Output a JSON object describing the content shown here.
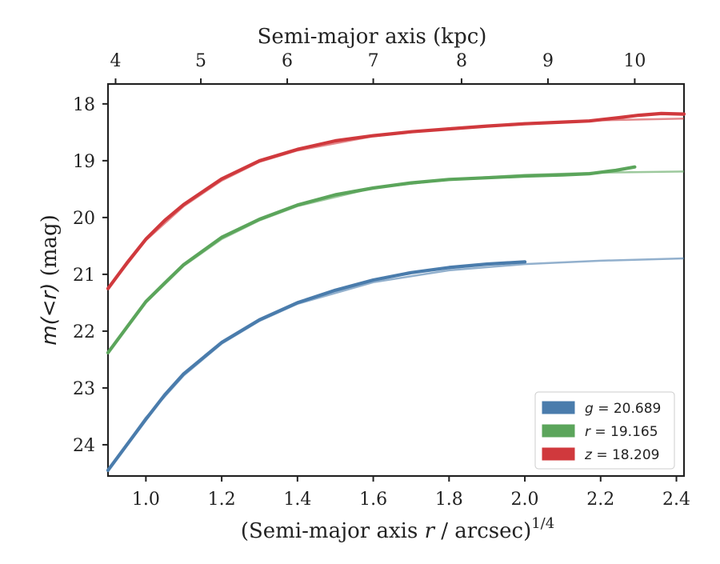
{
  "chart_data": {
    "type": "line",
    "title": "",
    "xlabel": "(Semi-major axis r / arcsec)^1/4",
    "xlabel_parts": {
      "prefix": "(Semi-major axis ",
      "var": "r",
      "suffix": " / arcsec)",
      "superscript": "1/4"
    },
    "ylabel": "m(<r) (mag)",
    "ylabel_parts": {
      "func": "m",
      "arg": "(<r)",
      "unit": " (mag)"
    },
    "top_xlabel": "Semi-major axis (kpc)",
    "xlim": [
      0.9,
      2.42
    ],
    "ylim": [
      24.55,
      17.65
    ],
    "y_inverted": true,
    "x_ticks": [
      "1.0",
      "1.2",
      "1.4",
      "1.6",
      "1.8",
      "2.0",
      "2.2",
      "2.4"
    ],
    "y_ticks": [
      "18",
      "19",
      "20",
      "21",
      "22",
      "23",
      "24"
    ],
    "top_ticks": [
      "4",
      "5",
      "6",
      "7",
      "8",
      "9",
      "10"
    ],
    "top_ticks_bottom_axis_position": [
      0.92,
      1.145,
      1.373,
      1.6,
      1.833,
      2.061,
      2.29
    ],
    "legend_position": "lower-right",
    "grid": false,
    "series": [
      {
        "name": "g = 20.689",
        "band": "g",
        "value_label": "20.689",
        "color": "#4a7cac",
        "data_x": [
          0.9,
          0.95,
          1.0,
          1.05,
          1.1,
          1.2,
          1.3,
          1.4,
          1.5,
          1.6,
          1.7,
          1.8,
          1.9,
          2.0
        ],
        "data_y": [
          24.45,
          24.0,
          23.55,
          23.12,
          22.75,
          22.2,
          21.8,
          21.5,
          21.28,
          21.1,
          20.97,
          20.88,
          20.82,
          20.78
        ],
        "model_x": [
          0.9,
          1.0,
          1.1,
          1.2,
          1.3,
          1.4,
          1.6,
          1.8,
          2.0,
          2.2,
          2.42
        ],
        "model_y": [
          24.45,
          23.52,
          22.78,
          22.22,
          21.82,
          21.52,
          21.14,
          20.93,
          20.82,
          20.76,
          20.72
        ]
      },
      {
        "name": "r = 19.165",
        "band": "r",
        "value_label": "19.165",
        "color": "#5ba55b",
        "data_x": [
          0.9,
          0.95,
          1.0,
          1.05,
          1.1,
          1.2,
          1.3,
          1.4,
          1.5,
          1.6,
          1.7,
          1.8,
          1.9,
          2.0,
          2.1,
          2.17,
          2.24,
          2.29
        ],
        "data_y": [
          22.38,
          21.93,
          21.48,
          21.15,
          20.83,
          20.35,
          20.03,
          19.78,
          19.6,
          19.48,
          19.39,
          19.33,
          19.3,
          19.27,
          19.25,
          19.23,
          19.17,
          19.11
        ],
        "model_x": [
          0.9,
          1.0,
          1.1,
          1.2,
          1.3,
          1.4,
          1.6,
          1.8,
          2.0,
          2.2,
          2.42
        ],
        "model_y": [
          22.38,
          21.5,
          20.85,
          20.38,
          20.05,
          19.8,
          19.48,
          19.33,
          19.25,
          19.21,
          19.19
        ]
      },
      {
        "name": "z = 18.209",
        "band": "z",
        "value_label": "18.209",
        "color": "#d0393d",
        "data_x": [
          0.9,
          0.95,
          1.0,
          1.05,
          1.1,
          1.2,
          1.3,
          1.4,
          1.5,
          1.6,
          1.7,
          1.8,
          1.9,
          2.0,
          2.1,
          2.17,
          2.25,
          2.3,
          2.36,
          2.42
        ],
        "data_y": [
          21.25,
          20.8,
          20.38,
          20.05,
          19.77,
          19.32,
          19.0,
          18.8,
          18.65,
          18.56,
          18.49,
          18.44,
          18.39,
          18.35,
          18.32,
          18.3,
          18.24,
          18.2,
          18.17,
          18.18
        ],
        "model_x": [
          0.9,
          1.0,
          1.1,
          1.2,
          1.3,
          1.4,
          1.6,
          1.8,
          2.0,
          2.2,
          2.42
        ],
        "model_y": [
          21.25,
          20.4,
          19.8,
          19.35,
          19.02,
          18.82,
          18.57,
          18.43,
          18.34,
          18.29,
          18.26
        ]
      }
    ]
  }
}
